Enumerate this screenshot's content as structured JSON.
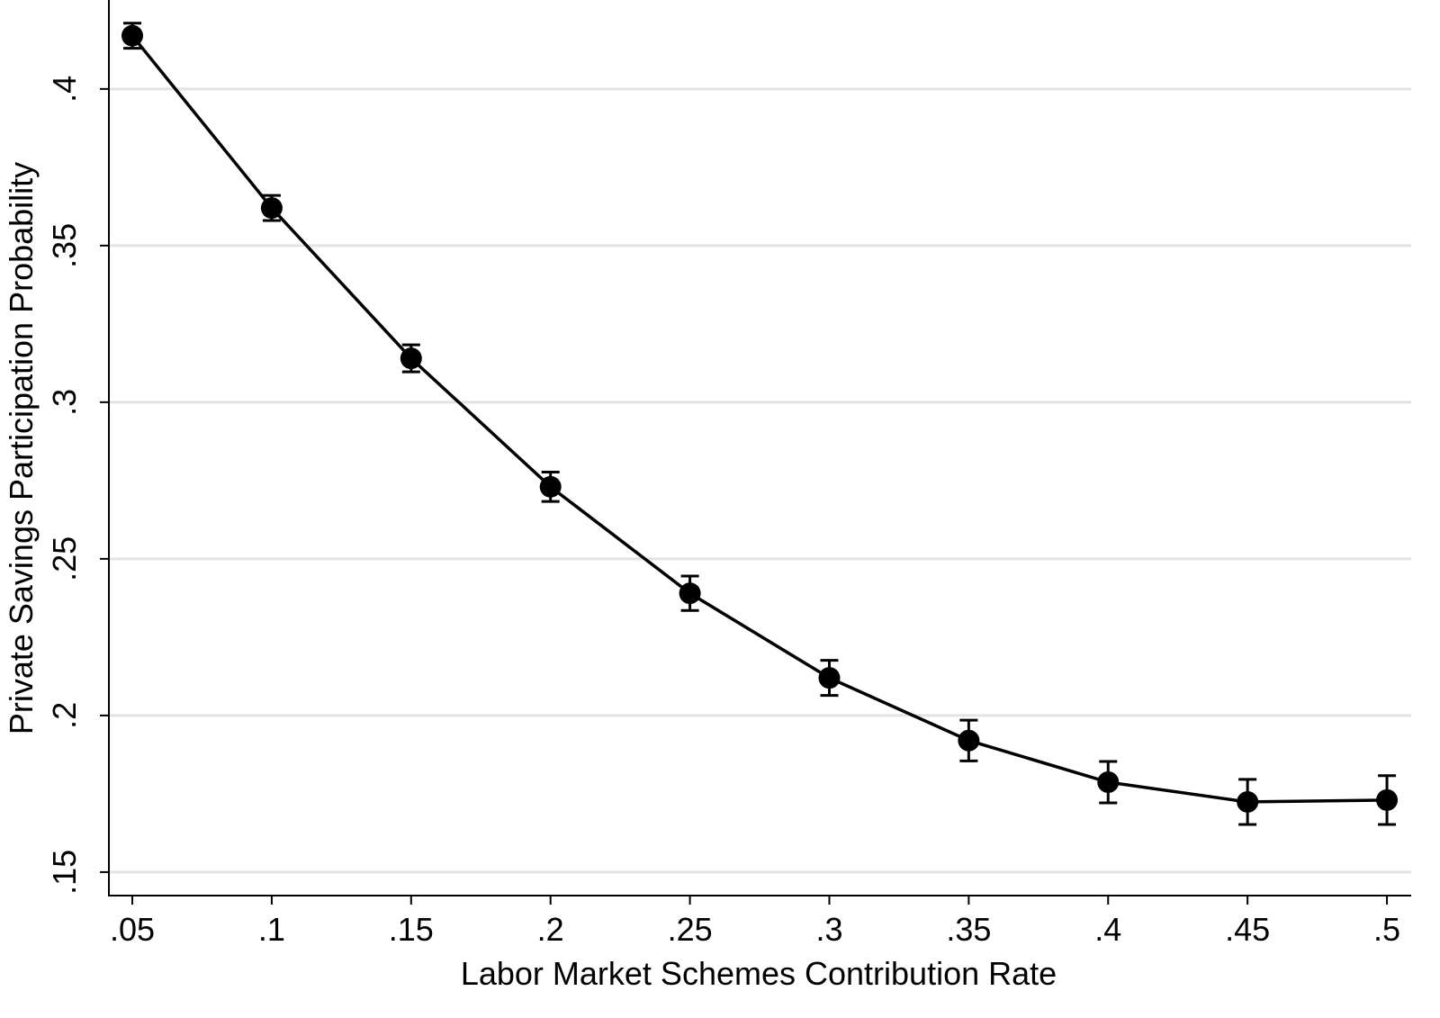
{
  "chart_data": {
    "type": "line",
    "x_label": "Labor Market Schemes Contribution Rate",
    "y_label": "Private Savings Participation Probability",
    "x": [
      0.05,
      0.1,
      0.15,
      0.2,
      0.25,
      0.3,
      0.35,
      0.4,
      0.45,
      0.5
    ],
    "values": [
      0.417,
      0.362,
      0.314,
      0.273,
      0.239,
      0.212,
      0.192,
      0.1787,
      0.1724,
      0.173
    ],
    "errors": [
      0.004,
      0.004,
      0.0043,
      0.0047,
      0.0055,
      0.0056,
      0.0065,
      0.0066,
      0.0072,
      0.0078
    ],
    "color": "#000000",
    "xlim": [
      0.0416,
      0.5087
    ],
    "ylim": [
      0.1425,
      0.4284
    ],
    "xticks": [
      {
        "value": 0.05,
        "label": ".05"
      },
      {
        "value": 0.1,
        "label": ".1"
      },
      {
        "value": 0.15,
        "label": ".15"
      },
      {
        "value": 0.2,
        "label": ".2"
      },
      {
        "value": 0.25,
        "label": ".25"
      },
      {
        "value": 0.3,
        "label": ".3"
      },
      {
        "value": 0.35,
        "label": ".35"
      },
      {
        "value": 0.4,
        "label": ".4"
      },
      {
        "value": 0.45,
        "label": ".45"
      },
      {
        "value": 0.5,
        "label": ".5"
      }
    ],
    "yticks": [
      {
        "value": 0.15,
        "label": ".15"
      },
      {
        "value": 0.2,
        "label": ".2"
      },
      {
        "value": 0.25,
        "label": ".25"
      },
      {
        "value": 0.3,
        "label": ".3"
      },
      {
        "value": 0.35,
        "label": ".35"
      },
      {
        "value": 0.4,
        "label": ".4"
      }
    ],
    "grid": true
  }
}
